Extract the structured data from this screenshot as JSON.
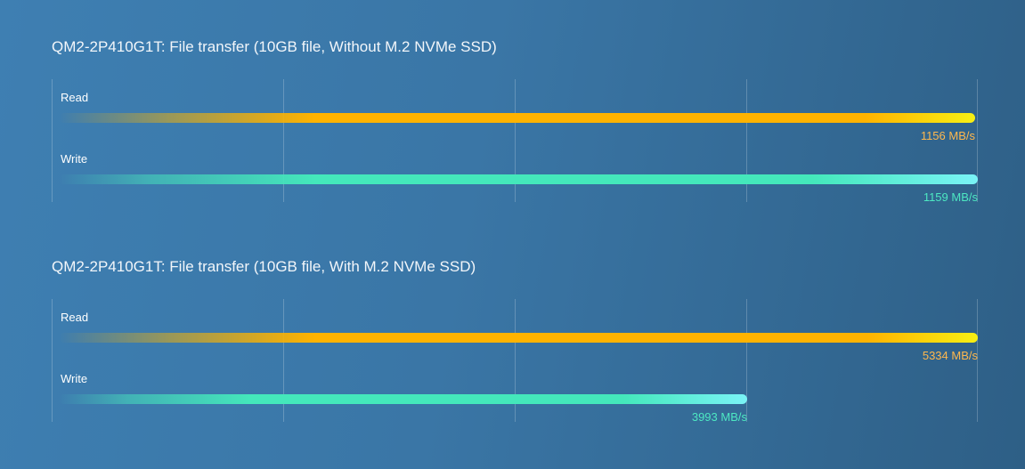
{
  "colors": {
    "read": "#ffb300",
    "write": "#44e8bb"
  },
  "chart_data": [
    {
      "type": "bar",
      "orientation": "horizontal",
      "title": "QM2-2P410G1T: File transfer (10GB file, Without M.2 NVMe SSD)",
      "categories": [
        "Read",
        "Write"
      ],
      "values": [
        1156,
        1159
      ],
      "value_labels": [
        "1156 MB/s",
        "1159 MB/s"
      ],
      "unit": "MB/s",
      "xlim": [
        0,
        1159
      ],
      "grid": true,
      "legend": "none"
    },
    {
      "type": "bar",
      "orientation": "horizontal",
      "title": "QM2-2P410G1T: File transfer (10GB file, With M.2 NVMe SSD)",
      "categories": [
        "Read",
        "Write"
      ],
      "values": [
        5334,
        3993
      ],
      "value_labels": [
        "5334 MB/s",
        "3993 MB/s"
      ],
      "unit": "MB/s",
      "xlim": [
        0,
        5334
      ],
      "grid": true,
      "legend": "none"
    }
  ]
}
